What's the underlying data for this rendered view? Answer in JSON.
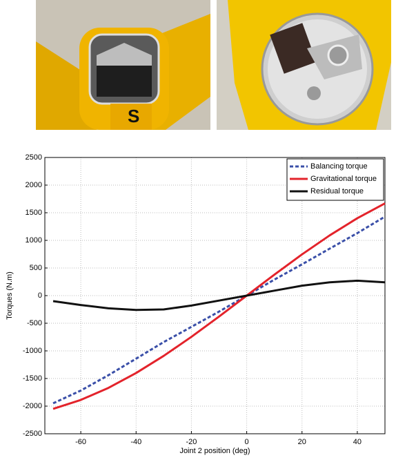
{
  "chart_data": {
    "type": "line",
    "xlabel": "Joint 2 position (deg)",
    "ylabel": "Torques (N.m)",
    "x": [
      -70,
      -60,
      -50,
      -40,
      -30,
      -20,
      -10,
      0,
      10,
      20,
      30,
      40,
      50
    ],
    "series": [
      {
        "name": "Balancing torque",
        "color": "#3a4fa8",
        "dash": true,
        "values": [
          -1949,
          -1718,
          -1440,
          -1141,
          -840,
          -566,
          -289,
          0,
          289,
          566,
          850,
          1131,
          1430
        ]
      },
      {
        "name": "Gravitational torque",
        "color": "#e3232b",
        "values": [
          -2049,
          -1888,
          -1670,
          -1401,
          -1090,
          -746,
          -379,
          0,
          379,
          746,
          1090,
          1401,
          1670
        ]
      },
      {
        "name": "Residual torque",
        "color": "#111111",
        "values": [
          -100,
          -170,
          -230,
          -260,
          -250,
          -180,
          -90,
          0,
          90,
          180,
          240,
          270,
          240
        ]
      }
    ],
    "xlim": [
      -73,
      50
    ],
    "xticks": [
      -60,
      -40,
      -20,
      0,
      20,
      40
    ],
    "ylim": [
      -2500,
      2500
    ],
    "yticks": [
      -2500,
      -2000,
      -1500,
      -1000,
      -500,
      0,
      500,
      1000,
      1500,
      2000,
      2500
    ],
    "grid": true,
    "legend": "top-right"
  }
}
